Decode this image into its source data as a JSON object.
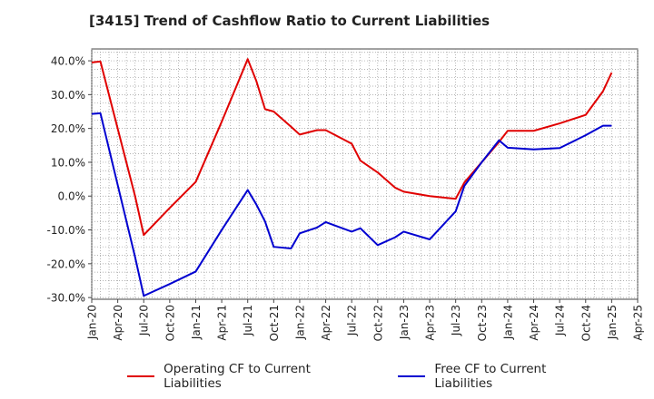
{
  "chart_data": {
    "type": "line",
    "title": "[3415]  Trend of Cashflow Ratio to Current Liabilities",
    "xlabel": "",
    "ylabel": "",
    "x_ticks": [
      "Jan-20",
      "Apr-20",
      "Jul-20",
      "Oct-20",
      "Jan-21",
      "Apr-21",
      "Jul-21",
      "Oct-21",
      "Jan-22",
      "Apr-22",
      "Jul-22",
      "Oct-22",
      "Jan-23",
      "Apr-23",
      "Jul-23",
      "Oct-23",
      "Jan-24",
      "Apr-24",
      "Jul-24",
      "Oct-24",
      "Jan-25",
      "Apr-25"
    ],
    "y_ticks": [
      "40.0%",
      "30.0%",
      "20.0%",
      "10.0%",
      "0.0%",
      "-10.0%",
      "-20.0%",
      "-30.0%"
    ],
    "y_tick_values": [
      40,
      30,
      20,
      10,
      0,
      -10,
      -20,
      -30
    ],
    "ylim": [
      -30.5,
      43.5
    ],
    "grid": true,
    "legend_position": "bottom",
    "series": [
      {
        "name": "Operating CF to Current Liabilities",
        "color": "#e00000",
        "x": [
          "2020-01",
          "2020-02",
          "2020-06",
          "2020-07",
          "2020-10",
          "2021-01",
          "2021-04",
          "2021-07",
          "2021-08",
          "2021-09",
          "2021-10",
          "2021-12",
          "2022-01",
          "2022-03",
          "2022-04",
          "2022-07",
          "2022-08",
          "2022-10",
          "2022-12",
          "2023-01",
          "2023-04",
          "2023-07",
          "2023-08",
          "2023-10",
          "2023-12",
          "2024-01",
          "2024-04",
          "2024-07",
          "2024-10",
          "2024-12",
          "2025-01"
        ],
        "values": [
          39.5,
          39.8,
          0,
          -11.5,
          -3.5,
          4.2,
          22,
          40.5,
          34,
          25.7,
          25,
          20.5,
          18.2,
          19.5,
          19.5,
          15.5,
          10.5,
          7,
          2.5,
          1.3,
          0,
          -0.8,
          4,
          10,
          16,
          19.3,
          19.3,
          21.5,
          24,
          31,
          36.5
        ]
      },
      {
        "name": "Free CF to Current Liabilities",
        "color": "#0000d0",
        "x": [
          "2020-01",
          "2020-02",
          "2020-06",
          "2020-07",
          "2020-10",
          "2021-01",
          "2021-04",
          "2021-07",
          "2021-08",
          "2021-09",
          "2021-10",
          "2021-12",
          "2022-01",
          "2022-03",
          "2022-04",
          "2022-07",
          "2022-08",
          "2022-10",
          "2022-12",
          "2023-01",
          "2023-04",
          "2023-07",
          "2023-08",
          "2023-10",
          "2023-12",
          "2024-01",
          "2024-04",
          "2024-07",
          "2024-10",
          "2024-12",
          "2025-01"
        ],
        "values": [
          24.3,
          24.5,
          -18,
          -29.5,
          -26,
          -22.3,
          -10,
          1.8,
          -2.5,
          -7.5,
          -15,
          -15.5,
          -11,
          -9.3,
          -7.7,
          -10.5,
          -9.5,
          -14.5,
          -12.2,
          -10.5,
          -12.8,
          -4.5,
          3,
          10,
          16.5,
          14.3,
          13.8,
          14.2,
          18,
          20.8,
          20.8
        ]
      }
    ]
  }
}
